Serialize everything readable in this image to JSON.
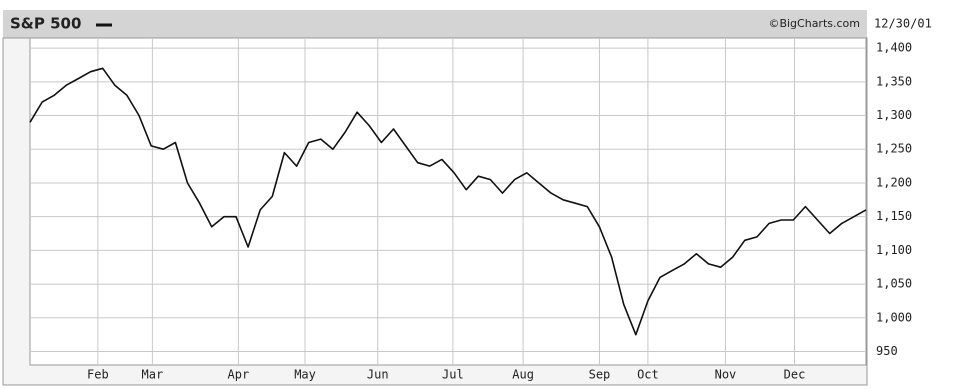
{
  "chart_data": {
    "type": "line",
    "source": "©BigCharts.com",
    "date": "12/30/01",
    "series": [
      {
        "name": "S&P 500",
        "color": "#111111",
        "values": [
          1290,
          1320,
          1330,
          1345,
          1355,
          1365,
          1370,
          1345,
          1330,
          1300,
          1255,
          1250,
          1260,
          1200,
          1170,
          1135,
          1150,
          1150,
          1105,
          1160,
          1180,
          1245,
          1225,
          1260,
          1265,
          1250,
          1275,
          1305,
          1285,
          1260,
          1280,
          1255,
          1230,
          1225,
          1235,
          1215,
          1190,
          1210,
          1205,
          1185,
          1205,
          1215,
          1200,
          1185,
          1175,
          1170,
          1165,
          1135,
          1090,
          1020,
          975,
          1025,
          1060,
          1070,
          1080,
          1095,
          1080,
          1075,
          1090,
          1115,
          1120,
          1140,
          1145,
          1145,
          1165,
          1145,
          1125,
          1140,
          1150,
          1160
        ]
      }
    ],
    "xlim": [
      0,
      69
    ],
    "xticks": [
      {
        "value": 5.6,
        "label": "Feb"
      },
      {
        "value": 10.1,
        "label": "Mar"
      },
      {
        "value": 17.2,
        "label": "Apr"
      },
      {
        "value": 22.7,
        "label": "May"
      },
      {
        "value": 28.7,
        "label": "Jun"
      },
      {
        "value": 34.9,
        "label": "Jul"
      },
      {
        "value": 40.7,
        "label": "Aug"
      },
      {
        "value": 47,
        "label": "Sep"
      },
      {
        "value": 51,
        "label": "Oct"
      },
      {
        "value": 57.4,
        "label": "Nov"
      },
      {
        "value": 63.1,
        "label": "Dec"
      }
    ],
    "ylim": [
      930,
      1415
    ],
    "yticks": [
      950,
      {
        "value": 1000,
        "label": "1,000"
      },
      {
        "value": 1050,
        "label": "1,050"
      },
      {
        "value": 1100,
        "label": "1,100"
      },
      {
        "value": 1150,
        "label": "1,150"
      },
      {
        "value": 1200,
        "label": "1,200"
      },
      {
        "value": 1250,
        "label": "1,250"
      },
      {
        "value": 1300,
        "label": "1,300"
      },
      {
        "value": 1350,
        "label": "1,350"
      },
      {
        "value": 1400,
        "label": "1,400"
      }
    ],
    "grid": true
  }
}
